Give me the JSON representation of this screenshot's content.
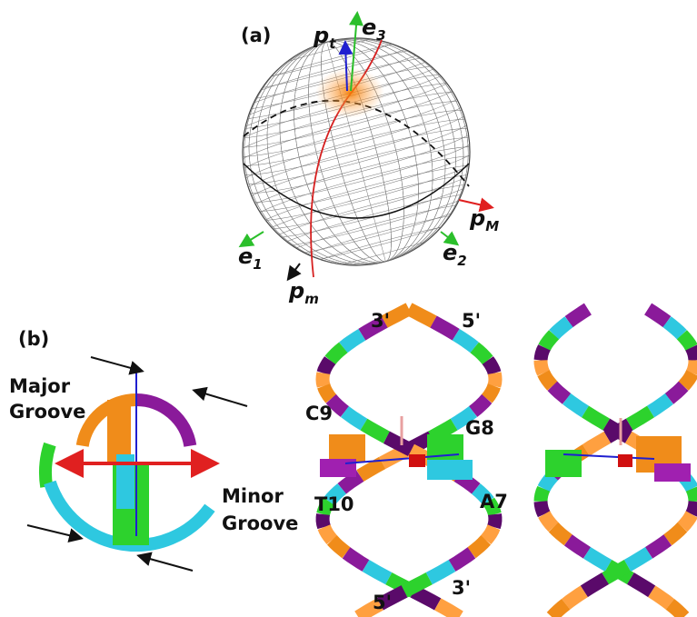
{
  "panel_a": {
    "label": "(a)",
    "vectors": [
      {
        "base": "p",
        "sub": "t"
      },
      {
        "base": "e",
        "sub": "3"
      },
      {
        "base": "p",
        "sub": "M"
      },
      {
        "base": "e",
        "sub": "1"
      },
      {
        "base": "e",
        "sub": "2"
      },
      {
        "base": "p",
        "sub": "m"
      }
    ]
  },
  "panel_b": {
    "label": "(b)",
    "grooves": {
      "major": [
        "Major",
        "Groove"
      ],
      "minor": [
        "Minor",
        "Groove"
      ]
    },
    "strand_ends": [
      "3'",
      "5'",
      "5'",
      "3'"
    ],
    "bases": [
      "C9",
      "G8",
      "T10",
      "A7"
    ]
  }
}
